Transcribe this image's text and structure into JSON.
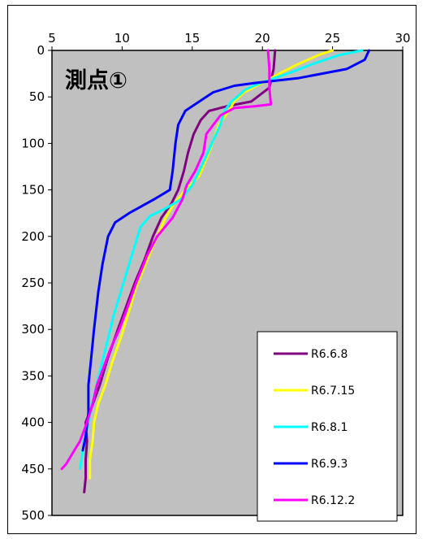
{
  "chart_data": {
    "type": "line",
    "title": "",
    "annotation": "測点①",
    "xlabel": "",
    "ylabel": "",
    "x_axis_position": "top",
    "y_axis_inverted": true,
    "xlim": [
      5,
      30
    ],
    "ylim": [
      0,
      500
    ],
    "x_ticks": [
      5,
      10,
      15,
      20,
      25,
      30
    ],
    "y_ticks": [
      0,
      50,
      100,
      150,
      200,
      250,
      300,
      350,
      400,
      450,
      500
    ],
    "grid": false,
    "plot_background": "#c0c0c0",
    "legend_position": "bottom-right",
    "series": [
      {
        "name": "R6.6.8",
        "color": "#800080",
        "points": [
          [
            20.9,
            0
          ],
          [
            20.8,
            20
          ],
          [
            20.5,
            40
          ],
          [
            19.2,
            55
          ],
          [
            17.5,
            60
          ],
          [
            16.2,
            65
          ],
          [
            15.6,
            75
          ],
          [
            15.1,
            90
          ],
          [
            14.7,
            110
          ],
          [
            14.4,
            130
          ],
          [
            14.0,
            150
          ],
          [
            13.5,
            165
          ],
          [
            12.8,
            180
          ],
          [
            12.2,
            200
          ],
          [
            11.6,
            225
          ],
          [
            10.9,
            250
          ],
          [
            10.3,
            275
          ],
          [
            9.7,
            300
          ],
          [
            9.0,
            330
          ],
          [
            8.4,
            360
          ],
          [
            7.8,
            385
          ],
          [
            7.4,
            400
          ],
          [
            7.5,
            420
          ],
          [
            7.4,
            440
          ],
          [
            7.4,
            460
          ],
          [
            7.3,
            475
          ]
        ]
      },
      {
        "name": "R6.7.15",
        "color": "#ffff00",
        "points": [
          [
            25.0,
            0
          ],
          [
            24.0,
            5
          ],
          [
            22.5,
            15
          ],
          [
            21.2,
            25
          ],
          [
            20.0,
            35
          ],
          [
            18.7,
            45
          ],
          [
            18.0,
            55
          ],
          [
            17.6,
            65
          ],
          [
            16.9,
            80
          ],
          [
            16.2,
            110
          ],
          [
            15.5,
            135
          ],
          [
            14.5,
            150
          ],
          [
            13.7,
            165
          ],
          [
            13.1,
            180
          ],
          [
            12.5,
            200
          ],
          [
            11.8,
            225
          ],
          [
            11.0,
            255
          ],
          [
            10.5,
            280
          ],
          [
            10.0,
            305
          ],
          [
            9.3,
            335
          ],
          [
            8.8,
            360
          ],
          [
            8.3,
            380
          ],
          [
            8.0,
            400
          ],
          [
            7.9,
            420
          ],
          [
            7.7,
            440
          ],
          [
            7.7,
            460
          ]
        ]
      },
      {
        "name": "R6.8.1",
        "color": "#00ffff",
        "points": [
          [
            27.1,
            0
          ],
          [
            25.5,
            5
          ],
          [
            23.5,
            15
          ],
          [
            21.8,
            25
          ],
          [
            20.2,
            33
          ],
          [
            18.8,
            42
          ],
          [
            17.8,
            55
          ],
          [
            17.3,
            65
          ],
          [
            17.0,
            80
          ],
          [
            16.4,
            100
          ],
          [
            15.8,
            120
          ],
          [
            15.0,
            145
          ],
          [
            14.2,
            160
          ],
          [
            13.1,
            170
          ],
          [
            12.0,
            178
          ],
          [
            11.3,
            190
          ],
          [
            10.9,
            210
          ],
          [
            10.5,
            230
          ],
          [
            10.0,
            255
          ],
          [
            9.4,
            285
          ],
          [
            9.0,
            310
          ],
          [
            8.5,
            340
          ],
          [
            8.1,
            365
          ],
          [
            7.8,
            385
          ],
          [
            7.6,
            400
          ],
          [
            7.3,
            420
          ],
          [
            7.1,
            440
          ],
          [
            7.0,
            450
          ]
        ]
      },
      {
        "name": "R6.9.3",
        "color": "#0000ff",
        "points": [
          [
            27.6,
            0
          ],
          [
            27.3,
            10
          ],
          [
            26.0,
            20
          ],
          [
            22.5,
            30
          ],
          [
            19.5,
            35
          ],
          [
            18.0,
            38
          ],
          [
            16.5,
            45
          ],
          [
            15.5,
            55
          ],
          [
            14.5,
            65
          ],
          [
            14.0,
            80
          ],
          [
            13.8,
            100
          ],
          [
            13.6,
            130
          ],
          [
            13.4,
            150
          ],
          [
            12.3,
            160
          ],
          [
            10.5,
            175
          ],
          [
            9.5,
            185
          ],
          [
            9.0,
            200
          ],
          [
            8.6,
            230
          ],
          [
            8.3,
            260
          ],
          [
            8.0,
            300
          ],
          [
            7.8,
            330
          ],
          [
            7.6,
            360
          ],
          [
            7.6,
            390
          ],
          [
            7.4,
            415
          ],
          [
            7.2,
            430
          ]
        ]
      },
      {
        "name": "R6.12.2",
        "color": "#ff00ff",
        "points": [
          [
            20.4,
            0
          ],
          [
            20.5,
            20
          ],
          [
            20.5,
            40
          ],
          [
            20.6,
            58
          ],
          [
            19.5,
            60
          ],
          [
            18.0,
            62
          ],
          [
            17.0,
            70
          ],
          [
            16.5,
            80
          ],
          [
            16.0,
            90
          ],
          [
            15.8,
            110
          ],
          [
            15.2,
            130
          ],
          [
            14.6,
            145
          ],
          [
            14.3,
            160
          ],
          [
            13.6,
            180
          ],
          [
            12.5,
            200
          ],
          [
            11.8,
            220
          ],
          [
            11.0,
            250
          ],
          [
            10.3,
            280
          ],
          [
            9.8,
            300
          ],
          [
            9.2,
            320
          ],
          [
            8.7,
            340
          ],
          [
            8.2,
            360
          ],
          [
            7.9,
            380
          ],
          [
            7.5,
            400
          ],
          [
            7.0,
            420
          ],
          [
            6.6,
            430
          ],
          [
            6.0,
            445
          ],
          [
            5.7,
            450
          ]
        ]
      }
    ]
  }
}
